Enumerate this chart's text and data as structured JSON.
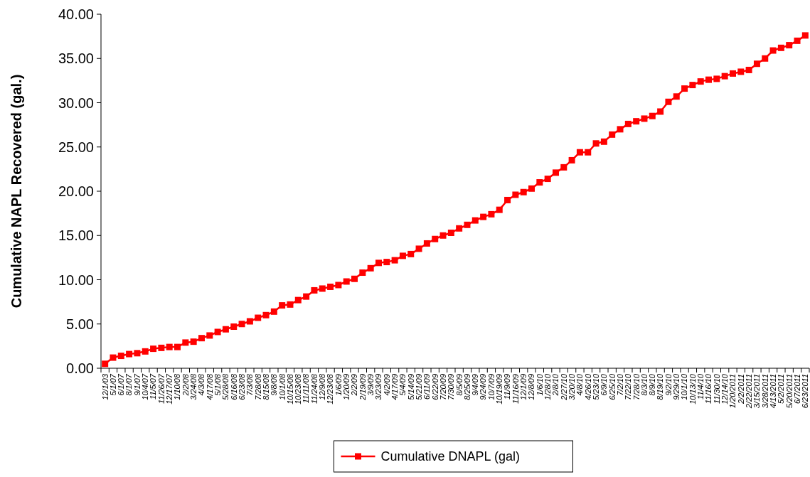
{
  "chart_data": {
    "type": "line",
    "ylabel": "Cumulative NAPL  Recovered (gal.)",
    "categories": [
      "12/1/03",
      "5/1/07",
      "6/1/07",
      "8/1/07",
      "9/1/07",
      "10/4/07",
      "11/5/07",
      "11/26/07",
      "12/17/07",
      "1/10/08",
      "2/2/08",
      "3/24/08",
      "4/3/08",
      "4/17/08",
      "5/1/08",
      "5/28/08",
      "6/16/08",
      "6/23/08",
      "7/3/08",
      "7/28/08",
      "8/15/08",
      "9/8/08",
      "10/1/08",
      "10/15/08",
      "10/23/08",
      "11/11/08",
      "11/24/08",
      "12/9/08",
      "12/23/08",
      "1/6/09",
      "1/20/09",
      "2/2/09",
      "2/19/09",
      "3/9/09",
      "3/23/09",
      "4/2/09",
      "4/17/09",
      "5/4/09",
      "5/14/09",
      "5/21/09",
      "6/11/09",
      "6/22/09",
      "7/20/09",
      "7/30/09",
      "8/5/09",
      "8/25/09",
      "9/4/09",
      "9/24/09",
      "10/7/09",
      "10/19/09",
      "11/9/09",
      "11/16/09",
      "12/1/09",
      "12/8/09",
      "1/6/10",
      "1/28/10",
      "2/8/10",
      "2/27/10",
      "3/20/10",
      "4/8/10",
      "4/26/10",
      "5/23/10",
      "6/9/10",
      "6/25/10",
      "7/2/10",
      "7/22/10",
      "7/28/10",
      "8/3/10",
      "8/9/10",
      "8/19/10",
      "9/2/10",
      "9/29/10",
      "10/1/10",
      "10/13/10",
      "11/4/10",
      "11/16/10",
      "11/30/10",
      "12/14/10",
      "1/20/2011",
      "2/2/2011",
      "2/22/2011",
      "3/15/2011",
      "3/28/2011",
      "4/13/2011",
      "5/2/2011",
      "5/20/2011",
      "6/7/2011",
      "6/23/2011"
    ],
    "series": [
      {
        "name": "Cumulative DNAPL (gal)",
        "color": "#ff0000",
        "values": [
          0.5,
          1.2,
          1.4,
          1.6,
          1.7,
          1.9,
          2.2,
          2.3,
          2.4,
          2.4,
          2.9,
          3.0,
          3.4,
          3.7,
          4.1,
          4.4,
          4.7,
          5.0,
          5.3,
          5.7,
          6.0,
          6.4,
          7.1,
          7.2,
          7.7,
          8.1,
          8.8,
          9.0,
          9.2,
          9.4,
          9.8,
          10.1,
          10.8,
          11.3,
          11.9,
          12.0,
          12.2,
          12.7,
          12.9,
          13.5,
          14.1,
          14.6,
          15.0,
          15.3,
          15.8,
          16.2,
          16.7,
          17.1,
          17.4,
          17.9,
          19.0,
          19.6,
          19.9,
          20.3,
          21.0,
          21.4,
          22.1,
          22.7,
          23.5,
          24.4,
          24.4,
          25.4,
          25.6,
          26.4,
          27.0,
          27.6,
          27.9,
          28.2,
          28.5,
          29.0,
          30.1,
          30.7,
          31.6,
          32.0,
          32.4,
          32.6,
          32.7,
          33.0,
          33.3,
          33.5,
          33.7,
          34.4,
          35.0,
          35.9,
          36.2,
          36.5,
          37.0,
          37.6
        ]
      }
    ],
    "ylim": [
      0,
      40
    ],
    "yticks": [
      {
        "value": 0,
        "label": "0.00"
      },
      {
        "value": 5,
        "label": "5.00"
      },
      {
        "value": 10,
        "label": "10.00"
      },
      {
        "value": 15,
        "label": "15.00"
      },
      {
        "value": 20,
        "label": "20.00"
      },
      {
        "value": 25,
        "label": "25.00"
      },
      {
        "value": 30,
        "label": "30.00"
      },
      {
        "value": 35,
        "label": "35.00"
      },
      {
        "value": 40,
        "label": "40.00"
      }
    ],
    "marker": "square",
    "line_style": "solid",
    "legend": "bottom",
    "grid": false
  }
}
